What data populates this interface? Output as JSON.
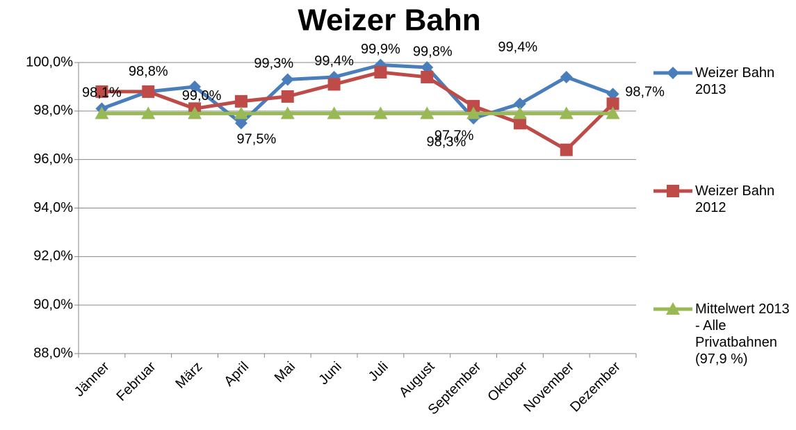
{
  "chart_data": {
    "type": "line",
    "title": "Weizer Bahn",
    "categories": [
      "Jänner",
      "Februar",
      "März",
      "April",
      "Mai",
      "Juni",
      "Juli",
      "August",
      "September",
      "Oktober",
      "November",
      "Dezember"
    ],
    "series": [
      {
        "name": "Weizer Bahn 2013",
        "color": "#4a7ebb",
        "marker": "diamond",
        "values": [
          98.1,
          98.8,
          99.0,
          97.5,
          99.3,
          99.4,
          99.9,
          99.8,
          97.7,
          98.3,
          99.4,
          98.7
        ],
        "value_labels": [
          "98,1%",
          "98,8%",
          "99,0%",
          "97,5%",
          "99,3%",
          "99,4%",
          "99,9%",
          "99,8%",
          "97,7%",
          "98,3%",
          "99,4%",
          "98,7%"
        ]
      },
      {
        "name": "Weizer Bahn 2012",
        "color": "#be4b48",
        "marker": "square",
        "values": [
          98.8,
          98.8,
          98.1,
          98.4,
          98.6,
          99.1,
          99.6,
          99.4,
          98.2,
          97.5,
          96.4,
          98.3
        ]
      },
      {
        "name": "Mittelwert 2013 - Alle Privatbahnen (97,9 %)",
        "color": "#98b954",
        "marker": "triangle",
        "values": [
          97.9,
          97.9,
          97.9,
          97.9,
          97.9,
          97.9,
          97.9,
          97.9,
          97.9,
          97.9,
          97.9,
          97.9
        ]
      }
    ],
    "ylim": [
      88,
      100
    ],
    "yticks": [
      {
        "value": 88,
        "label": "88,0%"
      },
      {
        "value": 90,
        "label": "90,0%"
      },
      {
        "value": 92,
        "label": "92,0%"
      },
      {
        "value": 94,
        "label": "94,0%"
      },
      {
        "value": 96,
        "label": "96,0%"
      },
      {
        "value": 98,
        "label": "98,0%"
      },
      {
        "value": 100,
        "label": "100,0%"
      }
    ],
    "grid": true,
    "legend": "right"
  }
}
